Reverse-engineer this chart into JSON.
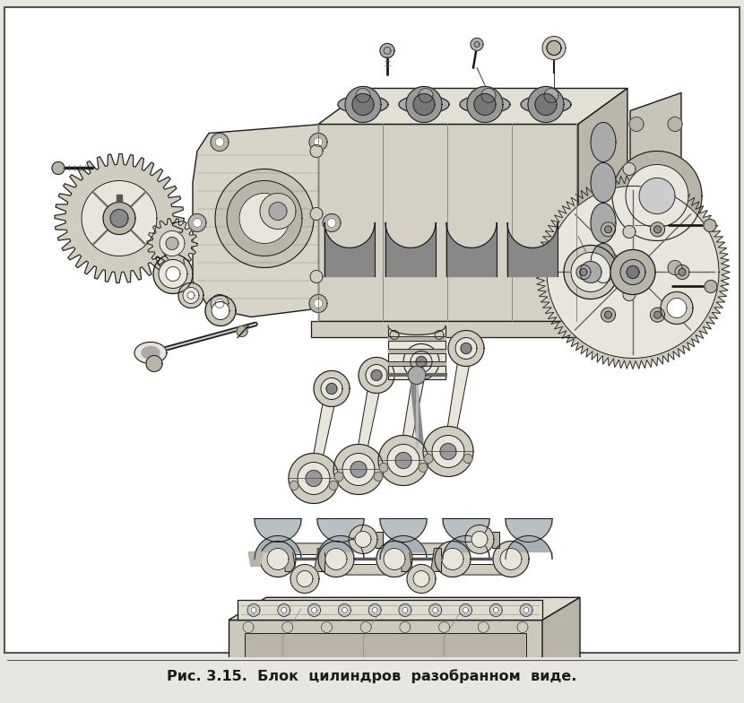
{
  "background_color": "#e8e6e0",
  "page_bg": "#f2f0eb",
  "inner_bg": "#f7f5f0",
  "border_outer_color": "#666666",
  "border_inner_color": "#888888",
  "caption": "Рис. 3.15.  Блок  цилиндров  разобранном  виде.",
  "caption_fontsize": 11.5,
  "caption_color": "#1a1a1a",
  "figure_width": 8.3,
  "figure_height": 7.84,
  "dpi": 100,
  "line_color": "#1a1a1a",
  "fill_light": "#e8e5dc",
  "fill_mid": "#d0cdc0",
  "fill_dark": "#b8b5a8",
  "fill_shadow": "#a0a098"
}
